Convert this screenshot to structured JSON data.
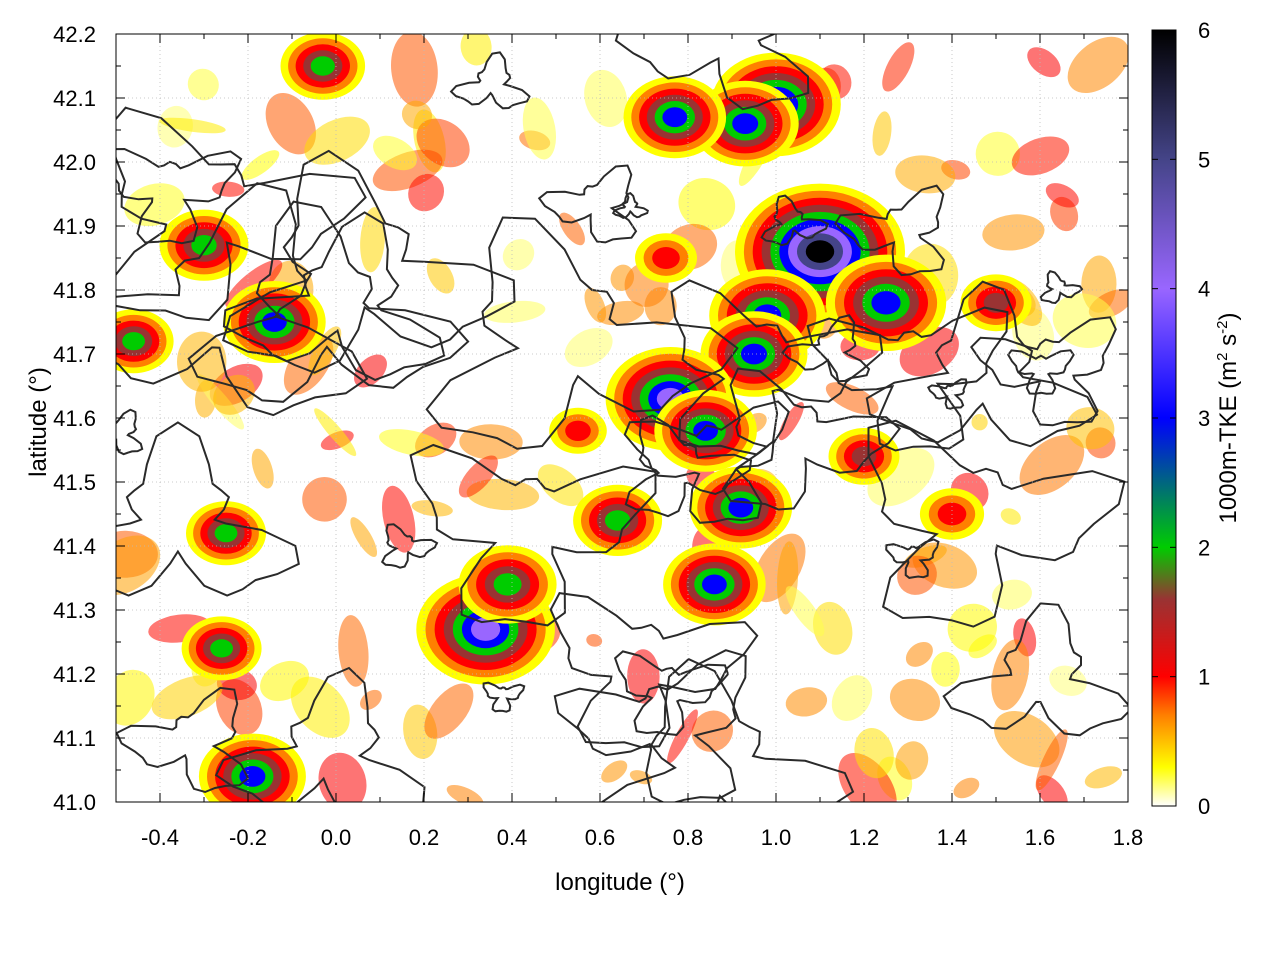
{
  "chart_data": {
    "type": "heatmap",
    "title": "",
    "xlabel": "longitude (°)",
    "ylabel": "latitude (°)",
    "colorbar_label": "1000m-TKE (m² s⁻²)",
    "colorbar_label_parts": {
      "base": "1000m-TKE (m",
      "sup1": "2",
      "mid": " s",
      "sup2": "-2",
      "end": ")"
    },
    "xlim": [
      -0.5,
      1.8
    ],
    "ylim": [
      41.0,
      42.2
    ],
    "zlim": [
      0,
      6
    ],
    "x_ticks": [
      -0.4,
      -0.2,
      0.0,
      0.2,
      0.4,
      0.6,
      0.8,
      1.0,
      1.2,
      1.4,
      1.6,
      1.8
    ],
    "x_tick_labels": [
      "-0.4",
      "-0.2",
      "0.0",
      "0.2",
      "0.4",
      "0.6",
      "0.8",
      "1.0",
      "1.2",
      "1.4",
      "1.6",
      "1.8"
    ],
    "y_ticks": [
      41.0,
      41.1,
      41.2,
      41.3,
      41.4,
      41.5,
      41.6,
      41.7,
      41.8,
      41.9,
      42.0,
      42.1,
      42.2
    ],
    "y_tick_labels": [
      "41.0",
      "41.1",
      "41.2",
      "41.3",
      "41.4",
      "41.5",
      "41.6",
      "41.7",
      "41.8",
      "41.9",
      "42.0",
      "42.1",
      "42.2"
    ],
    "z_ticks": [
      0,
      1,
      2,
      3,
      4,
      5,
      6
    ],
    "z_tick_labels": [
      "0",
      "1",
      "2",
      "3",
      "4",
      "5",
      "6"
    ],
    "grid": true,
    "colormap": [
      [
        0.0,
        "#ffffff"
      ],
      [
        0.3,
        "#ffff00"
      ],
      [
        0.7,
        "#ff8000"
      ],
      [
        1.0,
        "#ff0000"
      ],
      [
        1.6,
        "#993333"
      ],
      [
        2.0,
        "#00cc00"
      ],
      [
        3.0,
        "#0000ff"
      ],
      [
        4.0,
        "#9966ff"
      ],
      [
        5.0,
        "#444488"
      ],
      [
        6.0,
        "#000000"
      ]
    ],
    "tke_features": [
      {
        "lon": 1.1,
        "lat": 41.86,
        "peak": 6.0
      },
      {
        "lon": 0.98,
        "lat": 41.76,
        "peak": 3.6
      },
      {
        "lon": 0.95,
        "lat": 41.7,
        "peak": 3.2
      },
      {
        "lon": 0.76,
        "lat": 41.63,
        "peak": 4.2
      },
      {
        "lon": 0.84,
        "lat": 41.58,
        "peak": 3.0
      },
      {
        "lon": 0.34,
        "lat": 41.27,
        "peak": 4.6
      },
      {
        "lon": 0.39,
        "lat": 41.34,
        "peak": 2.8
      },
      {
        "lon": -0.14,
        "lat": 41.75,
        "peak": 3.0
      },
      {
        "lon": -0.19,
        "lat": 41.04,
        "peak": 3.2
      },
      {
        "lon": 1.25,
        "lat": 41.78,
        "peak": 3.8
      },
      {
        "lon": 1.0,
        "lat": 42.09,
        "peak": 4.2
      },
      {
        "lon": 0.93,
        "lat": 42.06,
        "peak": 3.2
      },
      {
        "lon": 0.77,
        "lat": 42.07,
        "peak": 3.0
      },
      {
        "lon": 0.64,
        "lat": 41.44,
        "peak": 2.4
      },
      {
        "lon": 0.86,
        "lat": 41.34,
        "peak": 3.0
      },
      {
        "lon": 0.92,
        "lat": 41.46,
        "peak": 3.0
      },
      {
        "lon": -0.26,
        "lat": 41.24,
        "peak": 2.0
      },
      {
        "lon": -0.03,
        "lat": 42.15,
        "peak": 2.2
      },
      {
        "lon": -0.3,
        "lat": 41.87,
        "peak": 2.4
      },
      {
        "lon": -0.46,
        "lat": 41.72,
        "peak": 2.0
      },
      {
        "lon": -0.25,
        "lat": 41.42,
        "peak": 2.0
      },
      {
        "lon": 1.5,
        "lat": 41.78,
        "peak": 1.6
      },
      {
        "lon": 1.2,
        "lat": 41.54,
        "peak": 1.6
      },
      {
        "lon": 1.4,
        "lat": 41.45,
        "peak": 1.3
      },
      {
        "lon": 0.55,
        "lat": 41.58,
        "peak": 1.0
      },
      {
        "lon": 0.75,
        "lat": 41.85,
        "peak": 1.2
      }
    ]
  }
}
